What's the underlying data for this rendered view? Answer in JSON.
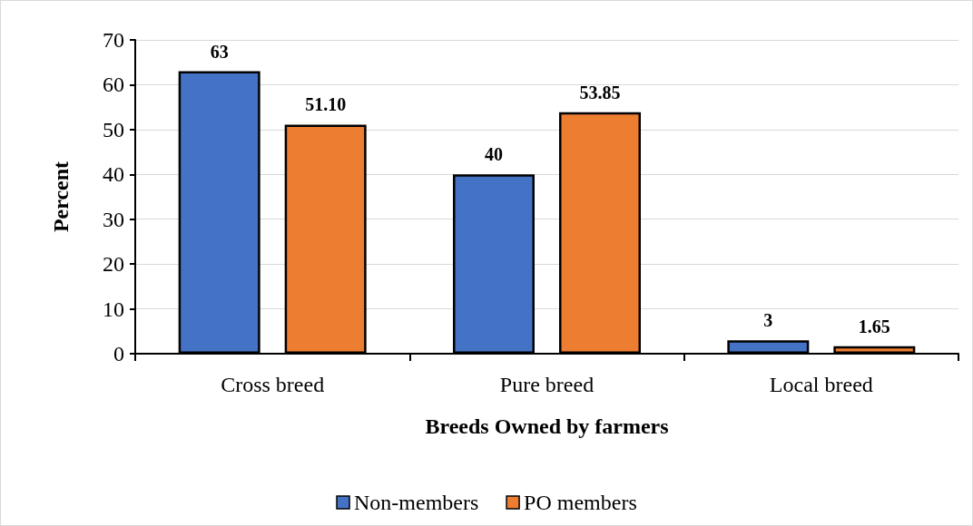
{
  "chart_data": {
    "type": "bar",
    "xlabel": "Breeds Owned by farmers",
    "ylabel": "Percent",
    "categories": [
      "Cross breed",
      "Pure breed",
      "Local breed"
    ],
    "series": [
      {
        "name": "Non-members",
        "color": "#4472c4",
        "values": [
          63,
          40,
          3
        ],
        "value_labels": [
          "63",
          "40",
          "3"
        ]
      },
      {
        "name": "PO members",
        "color": "#ed7d31",
        "values": [
          51.1,
          53.85,
          1.65
        ],
        "value_labels": [
          "51.10",
          "53.85",
          "1.65"
        ]
      }
    ],
    "ylim": [
      0,
      70
    ],
    "yticks": [
      0,
      10,
      20,
      30,
      40,
      50,
      60,
      70
    ],
    "grid": "y",
    "legend": "bottom"
  }
}
